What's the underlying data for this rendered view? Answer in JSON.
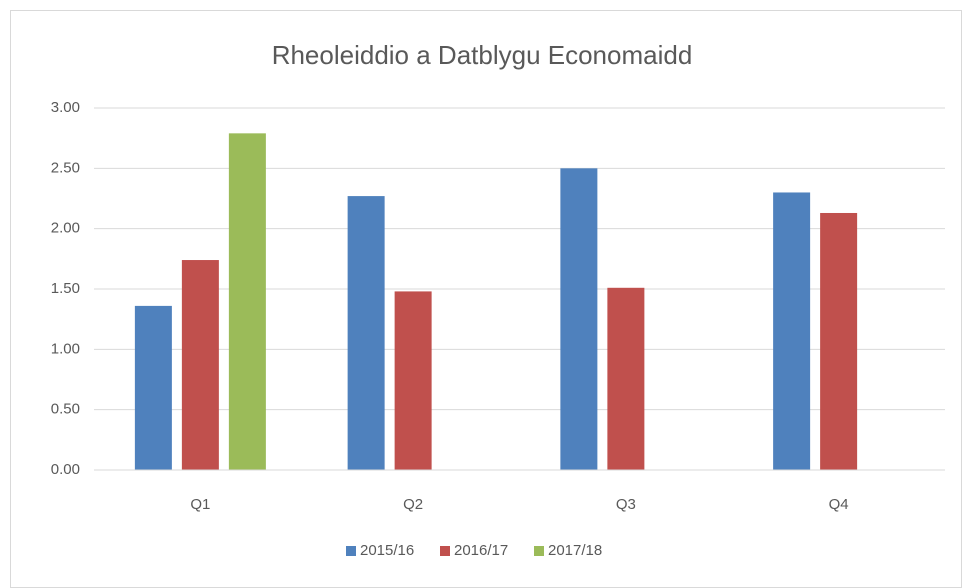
{
  "chart_data": {
    "type": "bar",
    "title": "Rheoleiddio a Datblygu Economaidd",
    "categories": [
      "Q1",
      "Q2",
      "Q3",
      "Q4"
    ],
    "series": [
      {
        "name": "2015/16",
        "color": "#4f81bd",
        "values": [
          1.36,
          2.27,
          2.5,
          2.3
        ]
      },
      {
        "name": "2016/17",
        "color": "#c0504d",
        "values": [
          1.74,
          1.48,
          1.51,
          2.13
        ]
      },
      {
        "name": "2017/18",
        "color": "#9bbb59",
        "values": [
          2.79,
          null,
          null,
          null
        ]
      }
    ],
    "ylim": [
      0,
      3
    ],
    "yticks": [
      {
        "value": 0,
        "label": "0.00"
      },
      {
        "value": 0.5,
        "label": "0.50"
      },
      {
        "value": 1,
        "label": "1.00"
      },
      {
        "value": 1.5,
        "label": "1.50"
      },
      {
        "value": 2,
        "label": "2.00"
      },
      {
        "value": 2.5,
        "label": "2.50"
      },
      {
        "value": 3,
        "label": "3.00"
      }
    ],
    "grid": true,
    "legend": "bottom"
  }
}
